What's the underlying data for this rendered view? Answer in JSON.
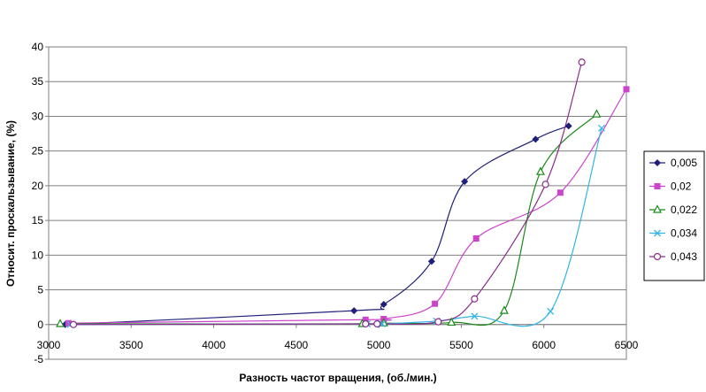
{
  "chart_data": {
    "type": "line",
    "xlabel": "Разность частот вращения, (об./мин.)",
    "ylabel": "Относит. проскальзывание, (%)",
    "xlim": [
      3000,
      6500
    ],
    "ylim": [
      -5,
      40
    ],
    "x_ticks": [
      "3000",
      "3500",
      "4000",
      "4500",
      "5000",
      "5500",
      "6000",
      "6500"
    ],
    "y_ticks": [
      "-5",
      "0",
      "5",
      "10",
      "15",
      "20",
      "25",
      "30",
      "35",
      "40"
    ],
    "grid": "horizontal",
    "legend_position": "right",
    "series": [
      {
        "name": "0,005",
        "color": "#1f1f7a",
        "marker": "diamond",
        "points": [
          [
            3100,
            0
          ],
          [
            4850,
            2
          ],
          [
            5030,
            2.9
          ],
          [
            5320,
            9.1
          ],
          [
            5520,
            20.6
          ],
          [
            5950,
            26.7
          ],
          [
            6150,
            28.6
          ]
        ]
      },
      {
        "name": "0,02",
        "color": "#cc44cc",
        "marker": "square",
        "points": [
          [
            3120,
            0.2
          ],
          [
            4920,
            0.7
          ],
          [
            5030,
            0.8
          ],
          [
            5340,
            3
          ],
          [
            5590,
            12.4
          ],
          [
            6100,
            19
          ],
          [
            6500,
            33.9
          ]
        ]
      },
      {
        "name": "0,022",
        "color": "#1a8a1a",
        "marker": "triangle",
        "points": [
          [
            3070,
            0.1
          ],
          [
            4900,
            0.1
          ],
          [
            5030,
            0.2
          ],
          [
            5440,
            0.3
          ],
          [
            5760,
            2
          ],
          [
            5980,
            22
          ],
          [
            6320,
            30.3
          ]
        ]
      },
      {
        "name": "0,034",
        "color": "#33b5e5",
        "marker": "x",
        "points": [
          [
            3130,
            0
          ],
          [
            4930,
            0.1
          ],
          [
            5020,
            0.1
          ],
          [
            5350,
            0.5
          ],
          [
            5580,
            1.2
          ],
          [
            6040,
            1.9
          ],
          [
            6350,
            28.3
          ]
        ]
      },
      {
        "name": "0,043",
        "color": "#8b2c8b",
        "marker": "circle",
        "points": [
          [
            3150,
            0
          ],
          [
            4920,
            0.1
          ],
          [
            4990,
            0.1
          ],
          [
            5360,
            0.4
          ],
          [
            5580,
            3.7
          ],
          [
            6010,
            20.2
          ],
          [
            6230,
            37.8
          ]
        ]
      }
    ]
  }
}
